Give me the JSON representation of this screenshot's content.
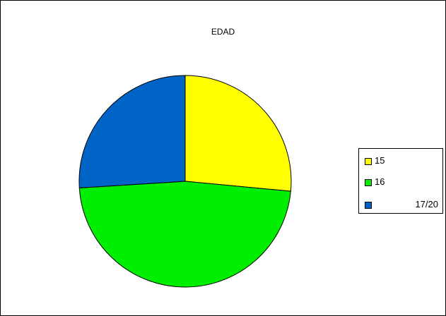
{
  "chart_data": {
    "type": "pie",
    "title": "EDAD",
    "categories": [
      "15",
      "16",
      "17/20"
    ],
    "values": [
      26.5,
      47.5,
      26.0
    ],
    "colors": [
      "#ffff00",
      "#00ee00",
      "#0063c6"
    ],
    "start_angle_deg": 0,
    "direction": "clockwise",
    "legend_position": "right"
  }
}
